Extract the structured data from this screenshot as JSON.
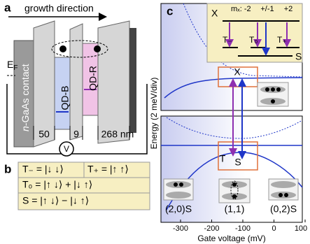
{
  "panel_a": {
    "label": "a",
    "arrow": "growth direction",
    "fermi": {
      "main": "E",
      "sub": "F"
    },
    "contact": {
      "italic": "n",
      "rest": "-GaAs contact"
    },
    "dot_left": "QD-B",
    "dot_right": "QD-R",
    "widths": [
      "50",
      "9",
      "268 nm"
    ],
    "source": "V"
  },
  "panel_b": {
    "label": "b",
    "rows": [
      [
        "T₋ = |↓ ↓⟩",
        "T₊ = |↑ ↑⟩"
      ],
      [
        "T₀ = |↑ ↓⟩ + |↓ ↑⟩"
      ],
      [
        "S = |↑ ↓⟩ − |↓ ↑⟩"
      ]
    ]
  },
  "panel_c": {
    "label": "c",
    "inset": {
      "upper": "X",
      "mz": "mₓ: -2",
      "mid": "+/-1",
      "right": "+2",
      "states": [
        "T₋",
        "T₀",
        "T₊"
      ],
      "lower": "S"
    },
    "levels": {
      "x": "X",
      "t": "T",
      "s": "S"
    },
    "configs": [
      "(2,0)S",
      "(1,1)",
      "(0,2)S"
    ],
    "y_label": "Energy (2 meV/div)",
    "x_label": "Gate voltage (mV)",
    "x_ticks": [
      -300,
      -200,
      -100,
      0,
      100
    ]
  }
}
